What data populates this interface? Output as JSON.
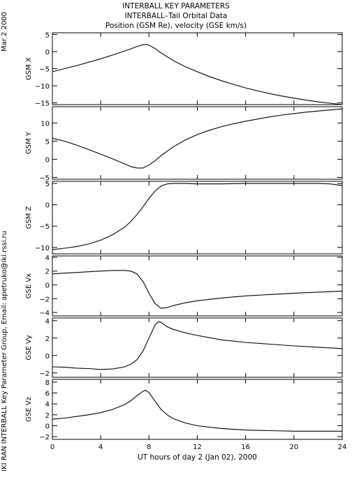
{
  "header": {
    "title1": "INTERBALL KEY PARAMETERS",
    "title2": "INTERBALL–Tail Orbital Data",
    "title3": "Position (GSM Re), velocity (GSE km/s)"
  },
  "sidebar": {
    "date": "Mar  2 2000",
    "credit": "IKI RAN INTERBALL Key Parameter Group, Email: apetruko@iki.rssi.ru"
  },
  "chart_data": {
    "type": "line",
    "xlabel": "UT hours of day   2 (Jan 02), 2000",
    "xlim": [
      0,
      24
    ],
    "xticks": [
      0,
      4,
      8,
      12,
      16,
      20,
      24
    ],
    "panels": [
      {
        "ylabel": "GSM X",
        "ylim": [
          -15.5,
          5.5
        ],
        "yticks": [
          -15,
          -10,
          -5,
          0,
          5
        ],
        "series": [
          {
            "x": [
              0,
              1,
              2,
              3,
              4,
              5,
              6,
              6.5,
              7,
              7.5,
              7.8,
              8,
              8.5,
              9,
              10,
              11,
              12,
              13,
              14,
              15,
              16,
              17,
              18,
              19,
              20,
              21,
              22,
              23,
              24
            ],
            "y": [
              -5.9,
              -5,
              -4.1,
              -3.1,
              -2.1,
              -1,
              0.2,
              0.8,
              1.5,
              2,
              2.1,
              1.9,
              0.9,
              -0.4,
              -2.6,
              -4.4,
              -5.9,
              -7.3,
              -8.5,
              -9.6,
              -10.6,
              -11.5,
              -12.3,
              -13,
              -13.6,
              -14.2,
              -14.7,
              -15.1,
              -15.5
            ]
          }
        ]
      },
      {
        "ylabel": "GSM Y",
        "ylim": [
          -5.5,
          14.5
        ],
        "yticks": [
          -5,
          0,
          5,
          10
        ],
        "series": [
          {
            "x": [
              0,
              1,
              2,
              3,
              4,
              5,
              6,
              6.5,
              7,
              7.5,
              8,
              8.5,
              9,
              10,
              11,
              12,
              13,
              14,
              15,
              16,
              17,
              18,
              19,
              20,
              21,
              22,
              23,
              24
            ],
            "y": [
              5.8,
              5,
              3.9,
              2.7,
              1.4,
              0.1,
              -1.3,
              -2,
              -2.4,
              -2.4,
              -1.6,
              -0.4,
              1,
              3.4,
              5.3,
              6.8,
              8,
              9,
              9.8,
              10.5,
              11.1,
              11.7,
              12.2,
              12.6,
              13,
              13.3,
              13.6,
              13.9
            ]
          }
        ]
      },
      {
        "ylabel": "GSM Z",
        "ylim": [
          -11.5,
          5.5
        ],
        "yticks": [
          -10,
          -5,
          0,
          5
        ],
        "series": [
          {
            "x": [
              0,
              1,
              2,
              3,
              4,
              5,
              6,
              6.5,
              7,
              7.5,
              8,
              8.5,
              9,
              9.5,
              10,
              11,
              12,
              14,
              16,
              18,
              20,
              22,
              23,
              24
            ],
            "y": [
              -10.5,
              -10.2,
              -9.8,
              -9.2,
              -8.3,
              -7,
              -5.2,
              -3.9,
              -2.3,
              -0.5,
              1.5,
              3.2,
              4.4,
              4.9,
              5,
              5,
              4.9,
              4.9,
              5,
              5,
              5,
              5,
              4.9,
              4.5
            ]
          }
        ]
      },
      {
        "ylabel": "GSE Vx",
        "ylim": [
          -4.5,
          4.2
        ],
        "yticks": [
          -4,
          -2,
          0,
          2,
          4
        ],
        "series": [
          {
            "x": [
              0,
              1,
              2,
              3,
              4,
              5,
              6,
              6.5,
              7,
              7.5,
              8,
              8.5,
              9,
              9.5,
              10,
              11,
              12,
              14,
              16,
              18,
              20,
              22,
              24
            ],
            "y": [
              1.6,
              1.7,
              1.8,
              1.9,
              2,
              2.1,
              2.1,
              2,
              1.6,
              0.5,
              -1.2,
              -2.7,
              -3.4,
              -3.3,
              -3,
              -2.6,
              -2.3,
              -1.9,
              -1.6,
              -1.4,
              -1.2,
              -1.05,
              -0.9
            ]
          }
        ]
      },
      {
        "ylabel": "GSE Vy",
        "ylim": [
          -2.5,
          4.3
        ],
        "yticks": [
          -2,
          0,
          2,
          4
        ],
        "series": [
          {
            "x": [
              0,
              1,
              2,
              3,
              4,
              5,
              6,
              6.5,
              7,
              7.5,
              8,
              8.5,
              8.8,
              9,
              9.5,
              10,
              11,
              12,
              14,
              16,
              18,
              20,
              22,
              24
            ],
            "y": [
              -1.3,
              -1.35,
              -1.45,
              -1.5,
              -1.6,
              -1.55,
              -1.3,
              -1,
              -0.5,
              0.5,
              2,
              3.5,
              3.9,
              3.8,
              3.3,
              3,
              2.6,
              2.3,
              1.8,
              1.5,
              1.3,
              1.1,
              0.95,
              0.8
            ]
          }
        ]
      },
      {
        "ylabel": "GSE Vz",
        "ylim": [
          -2.5,
          8.5
        ],
        "yticks": [
          -2,
          0,
          2,
          4,
          6,
          8
        ],
        "series": [
          {
            "x": [
              0,
              1,
              2,
              3,
              4,
              5,
              6,
              6.5,
              7,
              7.5,
              7.7,
              8,
              8.5,
              9,
              9.5,
              10,
              11,
              12,
              14,
              16,
              18,
              20,
              22,
              24
            ],
            "y": [
              1.2,
              1.4,
              1.7,
              2,
              2.4,
              3,
              3.9,
              4.6,
              5.5,
              6.3,
              6.5,
              6.1,
              4.5,
              3,
              2,
              1.3,
              0.5,
              0,
              -0.5,
              -0.8,
              -0.9,
              -1,
              -1,
              -1
            ]
          }
        ]
      }
    ]
  }
}
